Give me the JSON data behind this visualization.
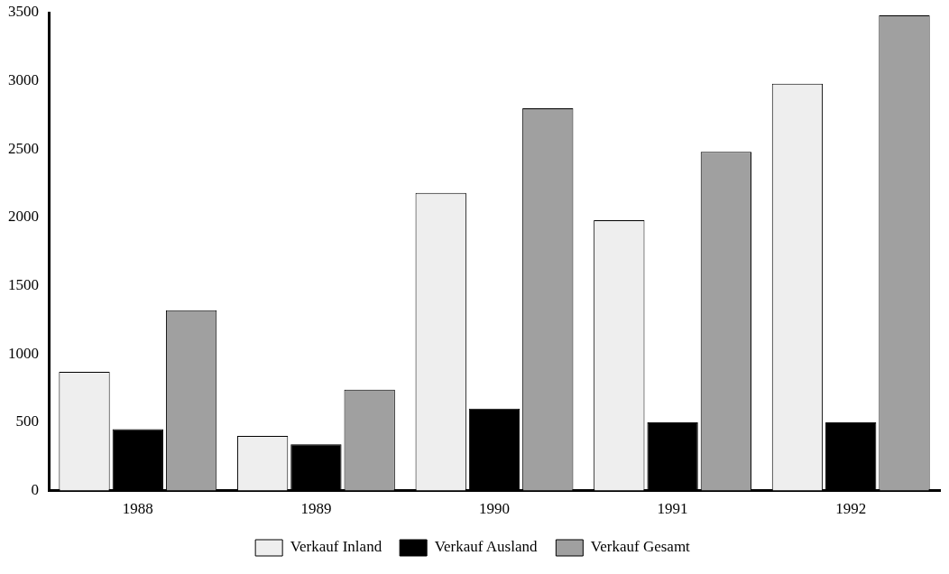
{
  "chart_data": {
    "type": "bar",
    "categories": [
      "1988",
      "1989",
      "1990",
      "1991",
      "1992"
    ],
    "series": [
      {
        "name": "Verkauf Inland",
        "color": "#eeeeee",
        "values": [
          870,
          400,
          2180,
          1980,
          2980
        ]
      },
      {
        "name": "Verkauf Ausland",
        "color": "#000000",
        "values": [
          450,
          340,
          600,
          500,
          500
        ]
      },
      {
        "name": "Verkauf Gesamt",
        "color": "#a0a0a0",
        "values": [
          1320,
          740,
          2800,
          2480,
          3480
        ]
      }
    ],
    "ylim": [
      0,
      3500
    ],
    "yticks": [
      0,
      500,
      1000,
      1500,
      2000,
      2500,
      3000,
      3500
    ],
    "grid": false,
    "legend": "bottom"
  }
}
